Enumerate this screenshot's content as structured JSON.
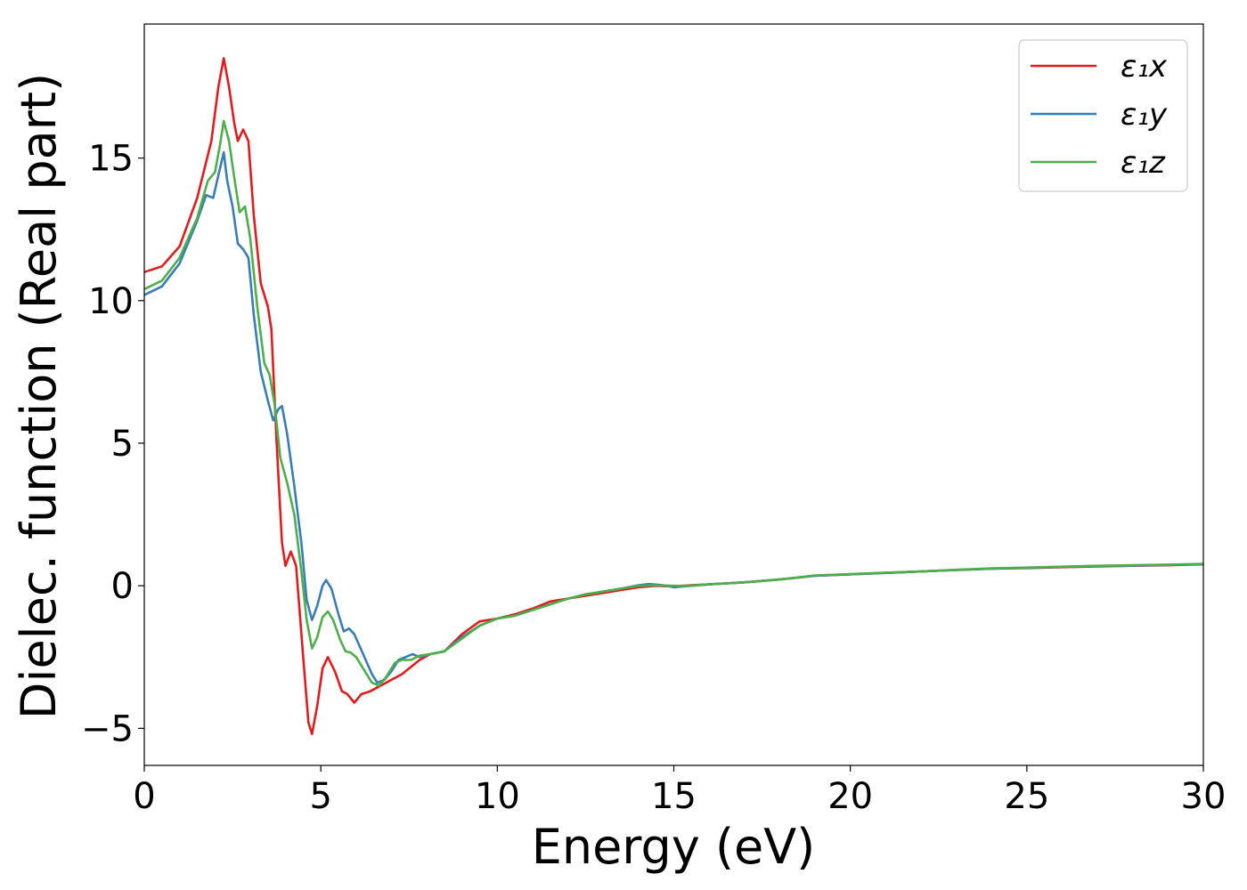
{
  "chart_data": {
    "type": "line",
    "title": "",
    "xlabel": "Energy (eV)",
    "ylabel": "Dielec. function (Real part)",
    "xlim": [
      0,
      30
    ],
    "ylim": [
      -6.3,
      19.7
    ],
    "xticks": [
      0,
      5,
      10,
      15,
      20,
      25,
      30
    ],
    "xtick_labels": [
      "0",
      "5",
      "10",
      "15",
      "20",
      "25",
      "30"
    ],
    "yticks": [
      -5,
      0,
      5,
      10,
      15
    ],
    "ytick_labels": [
      "−5",
      "0",
      "5",
      "10",
      "15"
    ],
    "grid": false,
    "legend_position": "top-right",
    "series": [
      {
        "name": "ε₁x",
        "color": "#e41a1c",
        "points": [
          [
            0,
            11
          ],
          [
            0.5,
            11.2
          ],
          [
            1,
            11.9
          ],
          [
            1.5,
            13.6
          ],
          [
            1.9,
            15.6
          ],
          [
            2.1,
            17.5
          ],
          [
            2.25,
            18.5
          ],
          [
            2.4,
            17.5
          ],
          [
            2.55,
            16.2
          ],
          [
            2.65,
            15.6
          ],
          [
            2.8,
            16
          ],
          [
            2.95,
            15.6
          ],
          [
            3.1,
            13
          ],
          [
            3.3,
            10.6
          ],
          [
            3.5,
            9.8
          ],
          [
            3.6,
            9
          ],
          [
            3.75,
            5
          ],
          [
            3.9,
            1.5
          ],
          [
            4,
            0.7
          ],
          [
            4.15,
            1.2
          ],
          [
            4.3,
            0.7
          ],
          [
            4.5,
            -2.5
          ],
          [
            4.65,
            -4.8
          ],
          [
            4.75,
            -5.2
          ],
          [
            4.9,
            -4.2
          ],
          [
            5.05,
            -2.9
          ],
          [
            5.2,
            -2.5
          ],
          [
            5.4,
            -3
          ],
          [
            5.6,
            -3.7
          ],
          [
            5.75,
            -3.8
          ],
          [
            5.95,
            -4.1
          ],
          [
            6.15,
            -3.8
          ],
          [
            6.4,
            -3.7
          ],
          [
            6.7,
            -3.5
          ],
          [
            7,
            -3.3
          ],
          [
            7.3,
            -3.1
          ],
          [
            7.55,
            -2.85
          ],
          [
            7.8,
            -2.6
          ],
          [
            8.1,
            -2.4
          ],
          [
            8.5,
            -2.3
          ],
          [
            9,
            -1.7
          ],
          [
            9.5,
            -1.25
          ],
          [
            10,
            -1.15
          ],
          [
            10.5,
            -1
          ],
          [
            11,
            -0.8
          ],
          [
            11.5,
            -0.55
          ],
          [
            12,
            -0.45
          ],
          [
            12.5,
            -0.35
          ],
          [
            13,
            -0.25
          ],
          [
            13.5,
            -0.15
          ],
          [
            14,
            -0.05
          ],
          [
            14.5,
            0
          ],
          [
            15,
            -0.02
          ],
          [
            15.5,
            0.02
          ],
          [
            16,
            0.05
          ],
          [
            17,
            0.12
          ],
          [
            18,
            0.22
          ],
          [
            19,
            0.35
          ],
          [
            20,
            0.4
          ],
          [
            21,
            0.45
          ],
          [
            22,
            0.5
          ],
          [
            23,
            0.55
          ],
          [
            24,
            0.6
          ],
          [
            25,
            0.62
          ],
          [
            26,
            0.65
          ],
          [
            27,
            0.68
          ],
          [
            28,
            0.7
          ],
          [
            29,
            0.72
          ],
          [
            30,
            0.75
          ]
        ]
      },
      {
        "name": "ε₁y",
        "color": "#377eb8",
        "points": [
          [
            0,
            10.2
          ],
          [
            0.5,
            10.5
          ],
          [
            1,
            11.3
          ],
          [
            1.5,
            12.8
          ],
          [
            1.75,
            13.7
          ],
          [
            1.95,
            13.6
          ],
          [
            2.1,
            14.4
          ],
          [
            2.25,
            15.2
          ],
          [
            2.35,
            14.2
          ],
          [
            2.5,
            13.3
          ],
          [
            2.65,
            12
          ],
          [
            2.8,
            11.8
          ],
          [
            2.95,
            11.5
          ],
          [
            3.1,
            9.5
          ],
          [
            3.3,
            7.5
          ],
          [
            3.5,
            6.5
          ],
          [
            3.65,
            5.8
          ],
          [
            3.8,
            6.2
          ],
          [
            3.9,
            6.3
          ],
          [
            4.05,
            5.3
          ],
          [
            4.25,
            3.5
          ],
          [
            4.45,
            1.5
          ],
          [
            4.6,
            -0.5
          ],
          [
            4.75,
            -1.2
          ],
          [
            4.9,
            -0.7
          ],
          [
            5.05,
            0
          ],
          [
            5.15,
            0.2
          ],
          [
            5.3,
            -0.1
          ],
          [
            5.5,
            -1
          ],
          [
            5.65,
            -1.6
          ],
          [
            5.8,
            -1.5
          ],
          [
            5.95,
            -1.7
          ],
          [
            6.2,
            -2.4
          ],
          [
            6.45,
            -3.1
          ],
          [
            6.6,
            -3.4
          ],
          [
            6.8,
            -3.3
          ],
          [
            7,
            -3
          ],
          [
            7.2,
            -2.6
          ],
          [
            7.4,
            -2.5
          ],
          [
            7.6,
            -2.4
          ],
          [
            7.8,
            -2.5
          ],
          [
            8.1,
            -2.4
          ],
          [
            8.5,
            -2.3
          ],
          [
            9,
            -1.8
          ],
          [
            9.5,
            -1.4
          ],
          [
            10,
            -1.15
          ],
          [
            10.5,
            -1.05
          ],
          [
            11,
            -0.85
          ],
          [
            11.5,
            -0.65
          ],
          [
            12,
            -0.45
          ],
          [
            12.5,
            -0.3
          ],
          [
            13,
            -0.2
          ],
          [
            13.5,
            -0.1
          ],
          [
            14,
            0.02
          ],
          [
            14.3,
            0.06
          ],
          [
            14.7,
            0.02
          ],
          [
            15,
            -0.05
          ],
          [
            15.5,
            0
          ],
          [
            16,
            0.05
          ],
          [
            17,
            0.12
          ],
          [
            18,
            0.22
          ],
          [
            19,
            0.35
          ],
          [
            20,
            0.4
          ],
          [
            21,
            0.45
          ],
          [
            22,
            0.5
          ],
          [
            23,
            0.55
          ],
          [
            24,
            0.6
          ],
          [
            25,
            0.63
          ],
          [
            26,
            0.66
          ],
          [
            27,
            0.69
          ],
          [
            28,
            0.71
          ],
          [
            29,
            0.73
          ],
          [
            30,
            0.76
          ]
        ]
      },
      {
        "name": "ε₁z",
        "color": "#4daf4a",
        "points": [
          [
            0,
            10.4
          ],
          [
            0.5,
            10.7
          ],
          [
            1,
            11.5
          ],
          [
            1.5,
            12.9
          ],
          [
            1.8,
            14.2
          ],
          [
            2,
            14.5
          ],
          [
            2.15,
            15.5
          ],
          [
            2.25,
            16.3
          ],
          [
            2.4,
            15.6
          ],
          [
            2.55,
            14.3
          ],
          [
            2.7,
            13.1
          ],
          [
            2.85,
            13.3
          ],
          [
            3,
            12.2
          ],
          [
            3.2,
            9.8
          ],
          [
            3.4,
            7.8
          ],
          [
            3.55,
            7.4
          ],
          [
            3.7,
            6.3
          ],
          [
            3.85,
            4.5
          ],
          [
            4.05,
            3.6
          ],
          [
            4.25,
            2.5
          ],
          [
            4.45,
            0.5
          ],
          [
            4.6,
            -1.2
          ],
          [
            4.75,
            -2.2
          ],
          [
            4.9,
            -1.8
          ],
          [
            5.05,
            -1.1
          ],
          [
            5.2,
            -0.9
          ],
          [
            5.35,
            -1.2
          ],
          [
            5.55,
            -1.9
          ],
          [
            5.7,
            -2.3
          ],
          [
            5.85,
            -2.35
          ],
          [
            6,
            -2.5
          ],
          [
            6.25,
            -3
          ],
          [
            6.45,
            -3.4
          ],
          [
            6.65,
            -3.5
          ],
          [
            6.85,
            -3.2
          ],
          [
            7.1,
            -2.7
          ],
          [
            7.3,
            -2.6
          ],
          [
            7.55,
            -2.6
          ],
          [
            7.8,
            -2.45
          ],
          [
            8.1,
            -2.4
          ],
          [
            8.5,
            -2.3
          ],
          [
            9,
            -1.85
          ],
          [
            9.5,
            -1.4
          ],
          [
            10,
            -1.15
          ],
          [
            10.5,
            -1.05
          ],
          [
            11,
            -0.85
          ],
          [
            11.5,
            -0.65
          ],
          [
            12,
            -0.45
          ],
          [
            12.5,
            -0.3
          ],
          [
            13,
            -0.2
          ],
          [
            13.5,
            -0.1
          ],
          [
            14,
            0
          ],
          [
            14.5,
            0.02
          ],
          [
            15,
            0
          ],
          [
            15.5,
            0
          ],
          [
            16,
            0.05
          ],
          [
            17,
            0.12
          ],
          [
            18,
            0.22
          ],
          [
            19,
            0.36
          ],
          [
            20,
            0.41
          ],
          [
            21,
            0.46
          ],
          [
            22,
            0.5
          ],
          [
            23,
            0.56
          ],
          [
            24,
            0.61
          ],
          [
            25,
            0.64
          ],
          [
            26,
            0.67
          ],
          [
            27,
            0.7
          ],
          [
            28,
            0.72
          ],
          [
            29,
            0.74
          ],
          [
            30,
            0.77
          ]
        ]
      }
    ]
  }
}
